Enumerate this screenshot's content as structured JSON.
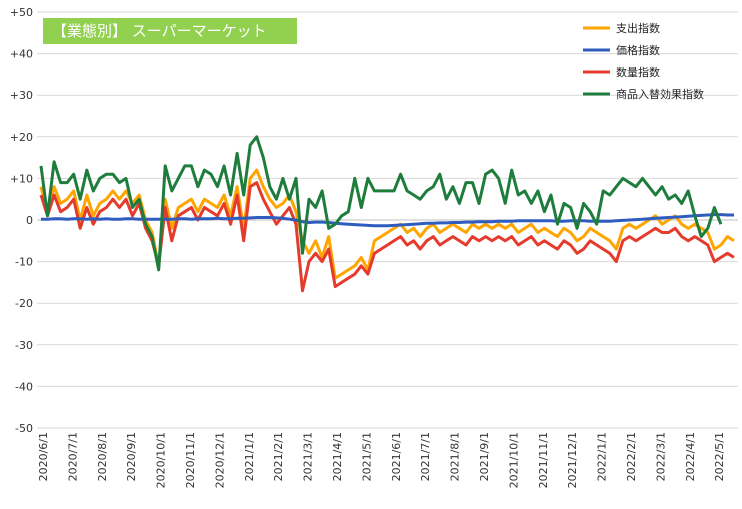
{
  "chart_data": {
    "type": "line",
    "title": "【業態別】 スーパーマーケット",
    "title_bg_color": "#92d050",
    "ylim": [
      -50,
      50
    ],
    "y_ticks": [
      50,
      40,
      30,
      20,
      10,
      0,
      -10,
      -20,
      -30,
      -40,
      -50
    ],
    "y_tick_labels": [
      "+50",
      "+40",
      "+30",
      "+20",
      "+10",
      "0",
      "-10",
      "-20",
      "-30",
      "-40",
      "-50"
    ],
    "x_tick_labels": [
      "2020/6/1",
      "2020/7/1",
      "2020/8/1",
      "2020/9/1",
      "2020/10/1",
      "2020/11/1",
      "2020/12/1",
      "2021/1/1",
      "2021/2/1",
      "2021/3/1",
      "2021/4/1",
      "2021/5/1",
      "2021/6/1",
      "2021/7/1",
      "2021/8/1",
      "2021/9/1",
      "2021/10/1",
      "2021/11/1",
      "2021/12/1",
      "2022/1/1",
      "2022/2/1",
      "2022/3/1",
      "2022/4/1",
      "2022/5/1"
    ],
    "grid": true,
    "legend_position": "top-right",
    "series": [
      {
        "name": "支出指数",
        "color": "#ffa500",
        "values": [
          8,
          2,
          8,
          4,
          5,
          7,
          0,
          6,
          1,
          4,
          5,
          7,
          5,
          7,
          4,
          6,
          0,
          -3,
          -11,
          5,
          -2,
          3,
          4,
          5,
          2,
          5,
          4,
          3,
          6,
          1,
          8,
          -2,
          10,
          12,
          8,
          5,
          3,
          4,
          6,
          2,
          -5,
          -8,
          -5,
          -9,
          -4,
          -14,
          -13,
          -12,
          -11,
          -9,
          -12,
          -5,
          -4,
          -3,
          -2,
          -1,
          -3,
          -2,
          -4,
          -2,
          -1,
          -3,
          -2,
          -1,
          -2,
          -3,
          -1,
          -2,
          -1,
          -2,
          -1,
          -2,
          -1,
          -3,
          -2,
          -1,
          -3,
          -2,
          -3,
          -4,
          -2,
          -3,
          -5,
          -4,
          -2,
          -3,
          -4,
          -5,
          -7,
          -2,
          -1,
          -2,
          -1,
          0,
          1,
          -1,
          0,
          1,
          -1,
          -2,
          -1,
          -2,
          -3,
          -7,
          -6,
          -4,
          -5
        ]
      },
      {
        "name": "価格指数",
        "color": "#2f5dbf",
        "values": [
          0.2,
          0.2,
          0.3,
          0.3,
          0.2,
          0.3,
          0.3,
          0.2,
          0.3,
          0.2,
          0.3,
          0.2,
          0.2,
          0.3,
          0.3,
          0.2,
          0.2,
          0.2,
          0.2,
          0.2,
          0.2,
          0.3,
          0.3,
          0.2,
          0.3,
          0.3,
          0.3,
          0.4,
          0.3,
          0.3,
          0.4,
          0.4,
          0.5,
          0.6,
          0.6,
          0.6,
          0.5,
          0.4,
          0.2,
          0,
          -0.4,
          -0.6,
          -0.5,
          -0.5,
          -0.6,
          -0.8,
          -0.9,
          -1,
          -1.1,
          -1.2,
          -1.3,
          -1.4,
          -1.4,
          -1.4,
          -1.3,
          -1.2,
          -1.1,
          -1,
          -0.9,
          -0.8,
          -0.8,
          -0.7,
          -0.7,
          -0.6,
          -0.6,
          -0.5,
          -0.5,
          -0.4,
          -0.4,
          -0.4,
          -0.3,
          -0.3,
          -0.3,
          -0.2,
          -0.2,
          -0.2,
          -0.2,
          -0.2,
          -0.2,
          -0.3,
          -0.3,
          -0.2,
          -0.2,
          -0.2,
          -0.3,
          -0.3,
          -0.3,
          -0.3,
          -0.2,
          -0.1,
          0,
          0.1,
          0.2,
          0.3,
          0.4,
          0.5,
          0.6,
          0.7,
          0.8,
          0.9,
          1,
          1.1,
          1.2,
          1.3,
          1.3,
          1.2,
          1.2
        ]
      },
      {
        "name": "数量指数",
        "color": "#e53b2c",
        "values": [
          6,
          1,
          6,
          2,
          3,
          5,
          -2,
          3,
          -1,
          2,
          3,
          5,
          3,
          5,
          1,
          4,
          -2,
          -5,
          -11,
          3,
          -5,
          1,
          2,
          3,
          0,
          3,
          2,
          1,
          4,
          -1,
          6,
          -5,
          8,
          9,
          5,
          2,
          -1,
          1,
          3,
          -1,
          -17,
          -10,
          -8,
          -10,
          -7,
          -16,
          -15,
          -14,
          -13,
          -11,
          -13,
          -8,
          -7,
          -6,
          -5,
          -4,
          -6,
          -5,
          -7,
          -5,
          -4,
          -6,
          -5,
          -4,
          -5,
          -6,
          -4,
          -5,
          -4,
          -5,
          -4,
          -5,
          -4,
          -6,
          -5,
          -4,
          -6,
          -5,
          -6,
          -7,
          -5,
          -6,
          -8,
          -7,
          -5,
          -6,
          -7,
          -8,
          -10,
          -5,
          -4,
          -5,
          -4,
          -3,
          -2,
          -3,
          -3,
          -2,
          -4,
          -5,
          -4,
          -5,
          -6,
          -10,
          -9,
          -8,
          -9
        ]
      },
      {
        "name": "商品入替効果指数",
        "color": "#1e7d3c",
        "values": [
          13,
          1,
          14,
          9,
          9,
          11,
          5,
          12,
          7,
          10,
          11,
          11,
          9,
          10,
          3,
          5,
          -1,
          -4,
          -12,
          13,
          7,
          10,
          13,
          13,
          8,
          12,
          11,
          8,
          13,
          6,
          16,
          6,
          18,
          20,
          15,
          8,
          5,
          10,
          5,
          10,
          -8,
          5,
          3,
          7,
          -2,
          -1,
          1,
          2,
          10,
          3,
          10,
          7,
          7,
          7,
          7,
          11,
          7,
          6,
          5,
          7,
          8,
          11,
          5,
          8,
          4,
          9,
          9,
          4,
          11,
          12,
          10,
          4,
          12,
          6,
          7,
          4,
          7,
          2,
          6,
          -1,
          4,
          3,
          -2,
          4,
          2,
          -1,
          7,
          6,
          8,
          10,
          9,
          8,
          10,
          8,
          6,
          8,
          5,
          6,
          4,
          7,
          1,
          -4,
          -2,
          3,
          -1
        ]
      }
    ]
  }
}
